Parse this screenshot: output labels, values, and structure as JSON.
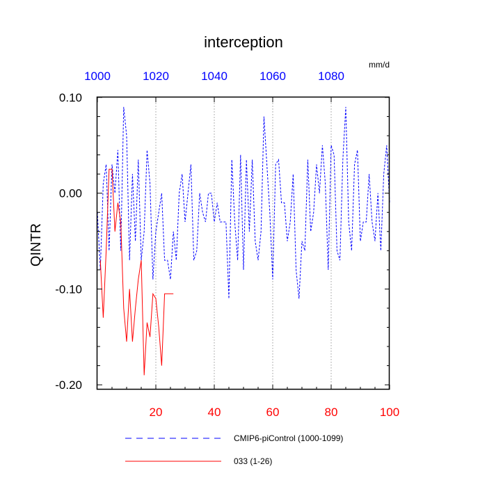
{
  "chart_data": {
    "type": "line",
    "title": "interception",
    "units": "mm/d",
    "ylabel": "QINTR",
    "xlim": [
      0,
      100
    ],
    "ylim": [
      -0.205,
      0.1
    ],
    "grid": "vertical dotted",
    "bottom_axis": {
      "color": "#ff0000",
      "ticks": [
        {
          "value": 20,
          "label": "20"
        },
        {
          "value": 40,
          "label": "40"
        },
        {
          "value": 60,
          "label": "60"
        },
        {
          "value": 80,
          "label": "80"
        },
        {
          "value": 100,
          "label": "100"
        }
      ]
    },
    "top_axis": {
      "color": "#0000ff",
      "ticks": [
        {
          "value": 0,
          "label": "1000"
        },
        {
          "value": 20,
          "label": "1020"
        },
        {
          "value": 40,
          "label": "1040"
        },
        {
          "value": 60,
          "label": "1060"
        },
        {
          "value": 80,
          "label": "1080"
        }
      ]
    },
    "left_axis": {
      "ticks": [
        {
          "value": 0.1,
          "label": "0.10"
        },
        {
          "value": 0.0,
          "label": "0.00"
        },
        {
          "value": -0.1,
          "label": "-0.10"
        },
        {
          "value": -0.2,
          "label": "-0.20"
        }
      ]
    },
    "series": [
      {
        "name": "CMIP6-piControl (1000-1099)",
        "color": "#0000ff",
        "dash": "dashed",
        "x": [
          0,
          1,
          2,
          3,
          4,
          5,
          6,
          7,
          8,
          9,
          10,
          11,
          12,
          13,
          14,
          15,
          16,
          17,
          18,
          19,
          20,
          21,
          22,
          23,
          24,
          25,
          26,
          27,
          28,
          29,
          30,
          31,
          32,
          33,
          34,
          35,
          36,
          37,
          38,
          39,
          40,
          41,
          42,
          43,
          44,
          45,
          46,
          47,
          48,
          49,
          50,
          51,
          52,
          53,
          54,
          55,
          56,
          57,
          58,
          59,
          60,
          61,
          62,
          63,
          64,
          65,
          66,
          67,
          68,
          69,
          70,
          71,
          72,
          73,
          74,
          75,
          76,
          77,
          78,
          79,
          80,
          81,
          82,
          83,
          84,
          85,
          86,
          87,
          88,
          89,
          90,
          91,
          92,
          93,
          94,
          95,
          96,
          97,
          98,
          99,
          100
        ],
        "y": [
          -0.02,
          -0.08,
          0.01,
          0.03,
          -0.06,
          0.03,
          0.0,
          0.045,
          -0.06,
          0.09,
          0.06,
          -0.07,
          0.02,
          -0.05,
          0.035,
          -0.07,
          -0.04,
          0.045,
          0.01,
          -0.09,
          -0.04,
          -0.02,
          0.0,
          -0.07,
          -0.07,
          -0.09,
          -0.04,
          -0.07,
          0.0,
          0.02,
          -0.03,
          0.0,
          0.03,
          -0.07,
          -0.06,
          0.0,
          -0.02,
          -0.03,
          0.0,
          0.0,
          -0.03,
          -0.01,
          -0.03,
          -0.03,
          -0.03,
          -0.11,
          0.035,
          -0.03,
          -0.07,
          0.04,
          -0.08,
          0.035,
          -0.04,
          0.035,
          -0.05,
          -0.07,
          -0.04,
          0.08,
          0.03,
          -0.02,
          -0.09,
          0.03,
          0.035,
          -0.01,
          -0.01,
          -0.05,
          -0.03,
          0.02,
          -0.08,
          -0.11,
          -0.05,
          -0.06,
          0.035,
          -0.04,
          -0.02,
          0.03,
          0.0,
          0.05,
          0.01,
          -0.08,
          0.05,
          0.04,
          -0.06,
          -0.07,
          0.035,
          0.09,
          -0.03,
          -0.06,
          0.03,
          0.045,
          -0.05,
          -0.03,
          -0.03,
          0.02,
          -0.03,
          -0.05,
          0.0,
          -0.06,
          0.02,
          0.05,
          -0.01
        ]
      },
      {
        "name": "033 (1-26)",
        "color": "#ff0000",
        "dash": "solid",
        "x": [
          1,
          2,
          3,
          4,
          5,
          6,
          7,
          8,
          9,
          10,
          11,
          12,
          13,
          14,
          15,
          16,
          17,
          18,
          19,
          20,
          21,
          22,
          23,
          24,
          25,
          26
        ],
        "y": [
          -0.07,
          -0.13,
          -0.06,
          0.025,
          0.025,
          -0.04,
          -0.01,
          -0.03,
          -0.12,
          -0.155,
          -0.1,
          -0.155,
          -0.12,
          -0.09,
          -0.07,
          -0.19,
          -0.135,
          -0.15,
          -0.105,
          -0.11,
          -0.14,
          -0.18,
          -0.105,
          -0.105,
          -0.105,
          -0.105
        ]
      }
    ]
  }
}
